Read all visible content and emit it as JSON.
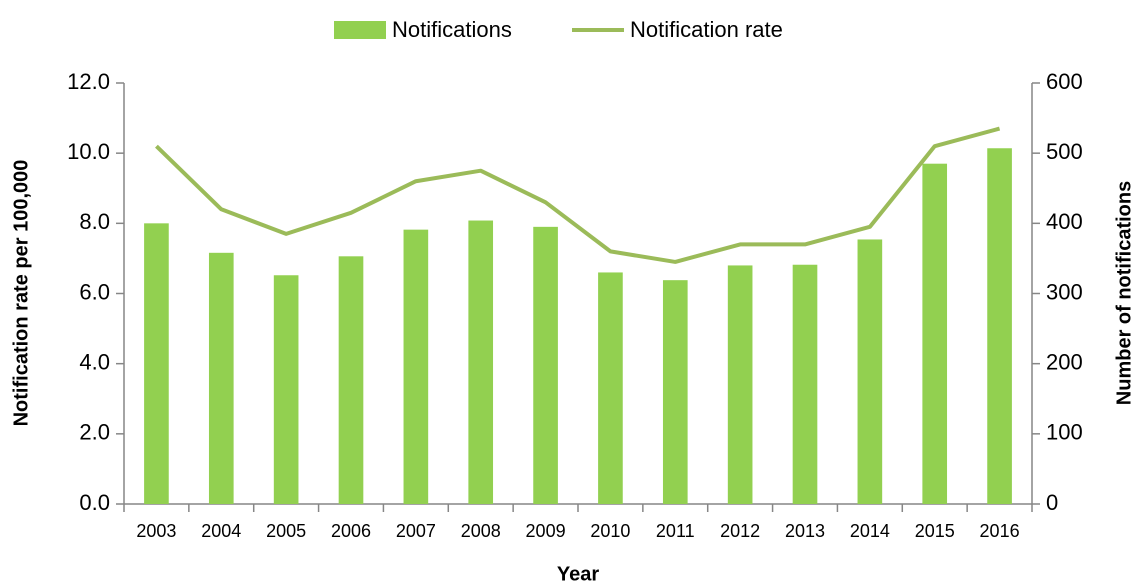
{
  "chart_data": {
    "type": "bar-line",
    "x_label": "Year",
    "y_label": "Notification rate per 100,000",
    "y2_label": "Number of notifications",
    "categories": [
      "2003",
      "2004",
      "2005",
      "2006",
      "2007",
      "2008",
      "2009",
      "2010",
      "2011",
      "2012",
      "2013",
      "2014",
      "2015",
      "2016"
    ],
    "series": [
      {
        "name": "Notifications",
        "type": "bar",
        "axis": "y2",
        "color": "#92d050",
        "values": [
          400,
          358,
          326,
          353,
          391,
          404,
          395,
          330,
          319,
          340,
          341,
          377,
          485,
          507
        ]
      },
      {
        "name": "Notification rate",
        "type": "line",
        "axis": "y",
        "color": "#9bbb59",
        "values": [
          10.2,
          8.4,
          7.7,
          8.3,
          9.2,
          9.5,
          8.6,
          7.2,
          6.9,
          7.4,
          7.4,
          7.9,
          10.2,
          10.7
        ]
      }
    ],
    "ylim": [
      0,
      12
    ],
    "yticks": [
      {
        "value": 0,
        "label": "0.0"
      },
      {
        "value": 2,
        "label": "2.0"
      },
      {
        "value": 4,
        "label": "4.0"
      },
      {
        "value": 6,
        "label": "6.0"
      },
      {
        "value": 8,
        "label": "8.0"
      },
      {
        "value": 10,
        "label": "10.0"
      },
      {
        "value": 12,
        "label": "12.0"
      }
    ],
    "y2lim": [
      0,
      600
    ],
    "y2ticks": [
      0,
      100,
      200,
      300,
      400,
      500,
      600
    ],
    "legend": "top"
  }
}
